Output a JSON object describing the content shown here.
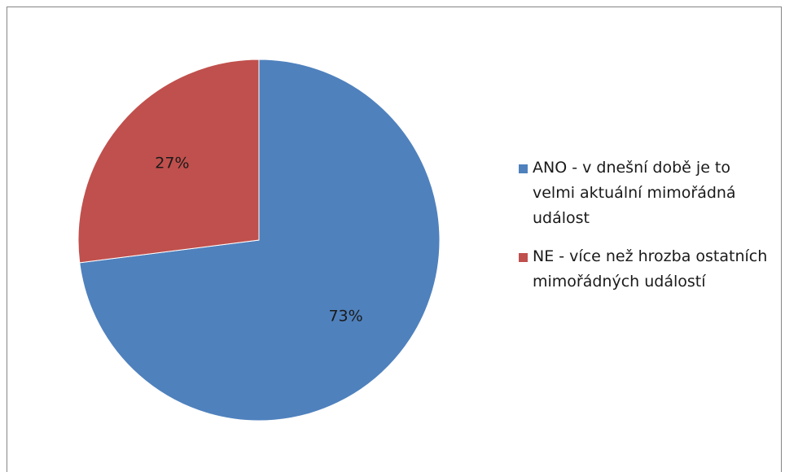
{
  "chart_data": {
    "type": "pie",
    "title": "",
    "legend_position": "right",
    "slices": [
      {
        "label": "ANO - v dnešní době je to velmi aktuální mimořádná událost",
        "value": 73,
        "value_label": "73%",
        "color": "#4F81BD"
      },
      {
        "label": "NE - více než hrozba ostatních mimořádných událostí",
        "value": 27,
        "value_label": "27%",
        "color": "#C0504D"
      }
    ]
  }
}
